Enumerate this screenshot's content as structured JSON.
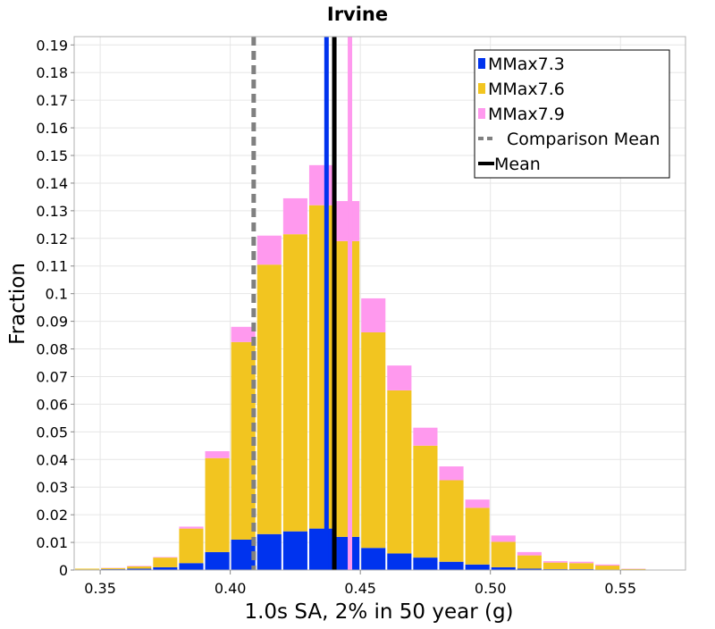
{
  "chart_data": {
    "type": "bar",
    "stacked": true,
    "title": "Irvine",
    "xlabel": "1.0s SA, 2% in 50 year (g)",
    "ylabel": "Fraction",
    "xlim": [
      0.34,
      0.575
    ],
    "ylim": [
      0,
      0.193
    ],
    "x_ticks": [
      0.35,
      0.4,
      0.45,
      0.5,
      0.55
    ],
    "x_tick_labels": [
      "0.35",
      "0.40",
      "0.45",
      "0.50",
      "0.55"
    ],
    "y_ticks": [
      0,
      0.01,
      0.02,
      0.03,
      0.04,
      0.05,
      0.06,
      0.07,
      0.08,
      0.09,
      0.1,
      0.11,
      0.12,
      0.13,
      0.14,
      0.15,
      0.16,
      0.17,
      0.18,
      0.19
    ],
    "y_tick_labels": [
      "0",
      "0.01",
      "0.02",
      "0.03",
      "0.04",
      "0.05",
      "0.06",
      "0.07",
      "0.08",
      "0.09",
      "0.1",
      "0.11",
      "0.12",
      "0.13",
      "0.14",
      "0.15",
      "0.16",
      "0.17",
      "0.18",
      "0.19"
    ],
    "grid": true,
    "legend_position": "top-right",
    "bin_width": 0.01,
    "x": [
      0.345,
      0.355,
      0.365,
      0.375,
      0.385,
      0.395,
      0.405,
      0.415,
      0.425,
      0.435,
      0.445,
      0.455,
      0.465,
      0.475,
      0.485,
      0.495,
      0.505,
      0.515,
      0.525,
      0.535,
      0.545,
      0.555,
      0.565
    ],
    "series": [
      {
        "name": "MMax7.3",
        "color": "#0033ee",
        "values": [
          0.0002,
          0.0003,
          0.0005,
          0.001,
          0.0025,
          0.0065,
          0.011,
          0.013,
          0.014,
          0.015,
          0.012,
          0.008,
          0.006,
          0.0045,
          0.003,
          0.002,
          0.001,
          0.0005,
          0.0003,
          0.0003,
          0.0001,
          0.0001,
          0.0
        ]
      },
      {
        "name": "MMax7.6",
        "color": "#f2c520",
        "values": [
          0.0003,
          0.0004,
          0.0008,
          0.0035,
          0.0125,
          0.034,
          0.0715,
          0.0975,
          0.1075,
          0.117,
          0.107,
          0.078,
          0.059,
          0.0405,
          0.0295,
          0.0205,
          0.0092,
          0.0048,
          0.0024,
          0.0022,
          0.0015,
          0.0003,
          0.0001
        ]
      },
      {
        "name": "MMax7.9",
        "color": "#ff99ee",
        "values": [
          0.0,
          0.0001,
          0.0002,
          0.0002,
          0.0007,
          0.0025,
          0.0055,
          0.0105,
          0.013,
          0.0145,
          0.0145,
          0.0123,
          0.009,
          0.0065,
          0.005,
          0.003,
          0.0023,
          0.0012,
          0.0005,
          0.0005,
          0.0004,
          0.0001,
          0.0
        ]
      }
    ],
    "vertical_lines": [
      {
        "name": "Comparison Mean",
        "x": 0.409,
        "color": "#808080",
        "style": "dashed"
      },
      {
        "name": "Mean",
        "x": 0.44,
        "color": "#000000",
        "style": "solid"
      }
    ],
    "series_lines": [
      {
        "series": "MMax7.3",
        "x": 0.437,
        "color": "#0033ee"
      },
      {
        "series": "MMax7.9",
        "x": 0.446,
        "color": "#ff99ee"
      }
    ],
    "legend": [
      {
        "label": "MMax7.3",
        "color": "#0033ee",
        "kind": "box"
      },
      {
        "label": "MMax7.6",
        "color": "#f2c520",
        "kind": "box"
      },
      {
        "label": "MMax7.9",
        "color": "#ff99ee",
        "kind": "box"
      },
      {
        "label": "Comparison Mean",
        "color": "#808080",
        "kind": "dashed"
      },
      {
        "label": "Mean",
        "color": "#000000",
        "kind": "solid"
      }
    ]
  }
}
